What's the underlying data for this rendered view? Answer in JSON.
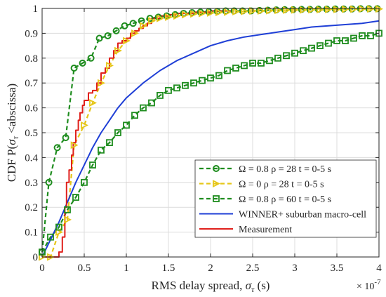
{
  "chart_data": {
    "type": "line",
    "xlabel_main": "RMS delay spread, ",
    "xlabel_sym": "σ",
    "xlabel_sub": "τ",
    "xlabel_unit": " (s)",
    "x_exponent_base": "× 10",
    "x_exponent_power": "-7",
    "ylabel_prefix": "CDF P(",
    "ylabel_sym": "σ",
    "ylabel_sub": "τ",
    "ylabel_suffix": " <abscissa)",
    "xlim": [
      0,
      4
    ],
    "ylim": [
      0,
      1
    ],
    "xticks": [
      "0",
      "0.5",
      "1",
      "1.5",
      "2",
      "2.5",
      "3",
      "3.5",
      "4"
    ],
    "yticks": [
      "0",
      "0.1",
      "0.2",
      "0.3",
      "0.4",
      "0.5",
      "0.6",
      "0.7",
      "0.8",
      "0.9",
      "1"
    ],
    "grid": true,
    "legend_position": "lower-right",
    "series": [
      {
        "name": "Ω = 0.8 ρ = 28 t = 0-5 s",
        "color": "#1e8c1e",
        "style": "dashed",
        "marker": "circle",
        "x": [
          0,
          0.08,
          0.18,
          0.28,
          0.38,
          0.48,
          0.58,
          0.68,
          0.78,
          0.88,
          0.98,
          1.08,
          1.18,
          1.28,
          1.38,
          1.48,
          1.58,
          1.68,
          1.78,
          1.88,
          1.98,
          2.08,
          2.18,
          2.28,
          2.38,
          2.48,
          2.58,
          2.68,
          2.78,
          2.88,
          2.98,
          3.08,
          3.18,
          3.28,
          3.38,
          3.48,
          3.58,
          3.68,
          3.78,
          3.88,
          3.98
        ],
        "y": [
          0.02,
          0.3,
          0.44,
          0.48,
          0.76,
          0.78,
          0.8,
          0.88,
          0.89,
          0.91,
          0.93,
          0.94,
          0.95,
          0.96,
          0.965,
          0.97,
          0.975,
          0.98,
          0.983,
          0.985,
          0.987,
          0.988,
          0.99,
          0.99,
          0.99,
          0.99,
          0.992,
          0.993,
          0.994,
          0.995,
          0.995,
          0.996,
          0.996,
          0.997,
          0.997,
          0.998,
          0.998,
          0.998,
          0.999,
          0.999,
          0.999
        ]
      },
      {
        "name": "Ω = 0 ρ = 28 t = 0-5 s",
        "color": "#e6c619",
        "style": "dashed",
        "marker": "triangle-right",
        "x": [
          0,
          0.1,
          0.2,
          0.3,
          0.38,
          0.5,
          0.6,
          0.7,
          0.8,
          0.9,
          1.0,
          1.1,
          1.2,
          1.3,
          1.4,
          1.5,
          1.6,
          1.7,
          1.8,
          1.9,
          2.0,
          2.1,
          2.2,
          2.3,
          2.4,
          2.5,
          2.6,
          2.7,
          2.8,
          2.9,
          3.0,
          3.1,
          3.2,
          3.3,
          3.4,
          3.5,
          3.6,
          3.7,
          3.8,
          3.9,
          4.0
        ],
        "y": [
          0.0,
          0.0,
          0.1,
          0.15,
          0.45,
          0.53,
          0.62,
          0.7,
          0.77,
          0.83,
          0.87,
          0.9,
          0.93,
          0.95,
          0.96,
          0.965,
          0.97,
          0.975,
          0.978,
          0.98,
          0.982,
          0.984,
          0.985,
          0.987,
          0.988,
          0.99,
          0.99,
          0.991,
          0.992,
          0.993,
          0.994,
          0.994,
          0.995,
          0.995,
          0.996,
          0.996,
          0.997,
          0.997,
          0.998,
          0.998,
          0.998
        ]
      },
      {
        "name": "Ω = 0.8 ρ = 60 t = 0-5 s",
        "color": "#1e8c1e",
        "style": "dashed",
        "marker": "square",
        "x": [
          0,
          0.1,
          0.2,
          0.3,
          0.4,
          0.5,
          0.6,
          0.7,
          0.8,
          0.9,
          1.0,
          1.1,
          1.2,
          1.3,
          1.4,
          1.5,
          1.6,
          1.7,
          1.8,
          1.9,
          2.0,
          2.1,
          2.2,
          2.3,
          2.4,
          2.5,
          2.6,
          2.7,
          2.8,
          2.9,
          3.0,
          3.1,
          3.2,
          3.3,
          3.4,
          3.5,
          3.6,
          3.7,
          3.8,
          3.9,
          4.0
        ],
        "y": [
          0.02,
          0.08,
          0.12,
          0.19,
          0.24,
          0.3,
          0.37,
          0.43,
          0.46,
          0.5,
          0.53,
          0.57,
          0.6,
          0.62,
          0.65,
          0.67,
          0.68,
          0.69,
          0.7,
          0.71,
          0.72,
          0.73,
          0.75,
          0.76,
          0.77,
          0.78,
          0.78,
          0.79,
          0.8,
          0.81,
          0.82,
          0.83,
          0.84,
          0.85,
          0.86,
          0.87,
          0.87,
          0.88,
          0.89,
          0.89,
          0.9
        ]
      },
      {
        "name": "WINNER+ suburban macro-cell",
        "color": "#1f3fd6",
        "style": "solid",
        "marker": "none",
        "x": [
          0,
          0.1,
          0.2,
          0.3,
          0.4,
          0.5,
          0.6,
          0.7,
          0.8,
          0.9,
          1.0,
          1.2,
          1.4,
          1.6,
          1.8,
          2.0,
          2.2,
          2.4,
          2.6,
          2.8,
          3.0,
          3.2,
          3.4,
          3.6,
          3.8,
          4.0
        ],
        "y": [
          0.0,
          0.07,
          0.14,
          0.22,
          0.3,
          0.37,
          0.44,
          0.5,
          0.55,
          0.6,
          0.64,
          0.7,
          0.75,
          0.79,
          0.82,
          0.85,
          0.87,
          0.885,
          0.895,
          0.905,
          0.915,
          0.925,
          0.93,
          0.935,
          0.94,
          0.95
        ]
      },
      {
        "name": "Measurement",
        "color": "#e0201c",
        "style": "step",
        "marker": "none",
        "x": [
          0,
          0.16,
          0.2,
          0.24,
          0.27,
          0.29,
          0.32,
          0.35,
          0.37,
          0.4,
          0.43,
          0.45,
          0.48,
          0.5,
          0.55,
          0.6,
          0.65,
          0.7,
          0.75,
          0.8,
          0.85,
          0.9,
          0.95,
          1.0,
          1.05,
          1.1,
          1.15,
          1.2,
          1.25,
          1.3,
          1.4,
          1.5,
          1.6,
          1.8,
          2.0,
          2.25
        ],
        "y": [
          0.0,
          0.0,
          0.02,
          0.08,
          0.2,
          0.3,
          0.35,
          0.41,
          0.46,
          0.51,
          0.55,
          0.58,
          0.61,
          0.63,
          0.66,
          0.67,
          0.7,
          0.74,
          0.76,
          0.8,
          0.83,
          0.86,
          0.87,
          0.88,
          0.9,
          0.91,
          0.92,
          0.93,
          0.94,
          0.96,
          0.97,
          0.975,
          0.98,
          0.985,
          0.99,
          0.99
        ]
      }
    ]
  }
}
